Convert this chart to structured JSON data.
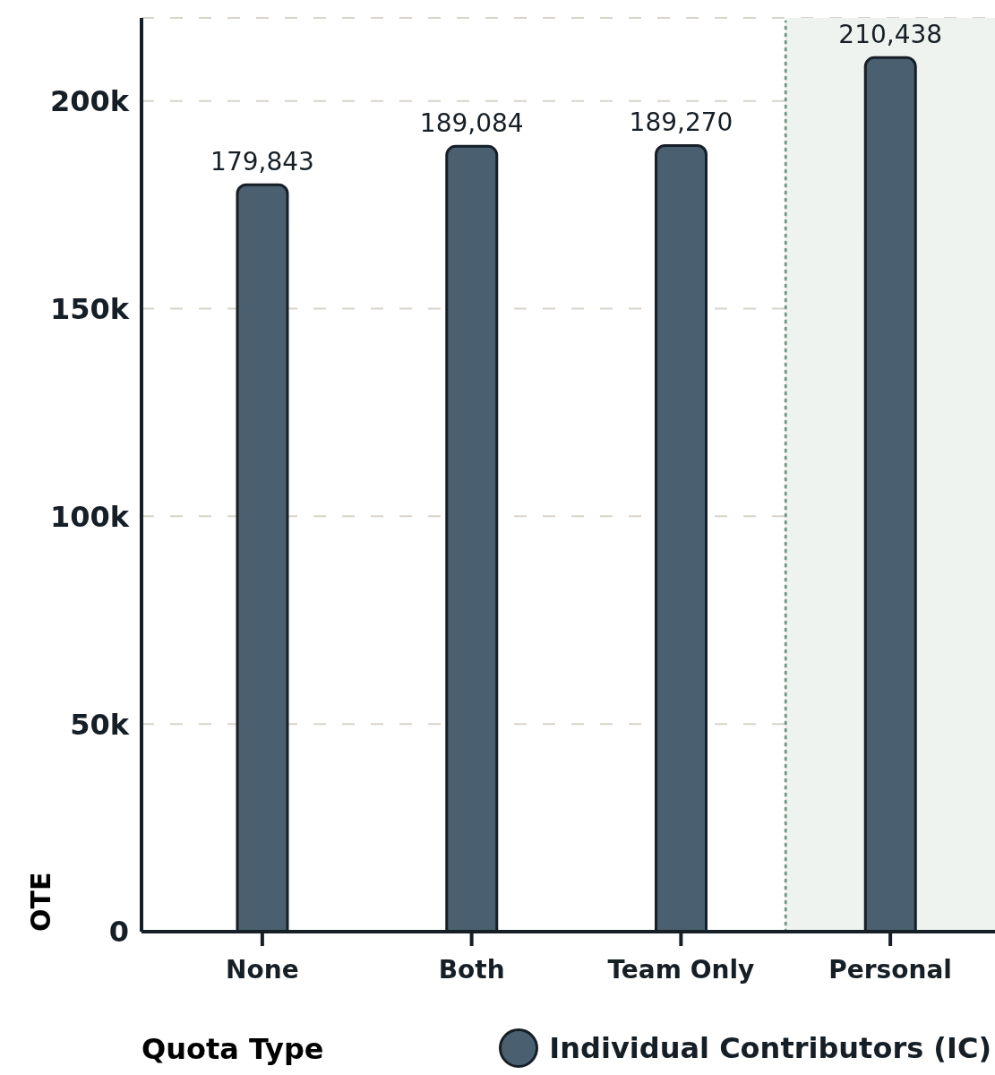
{
  "chart_data": {
    "type": "bar",
    "xlabel": "Quota Type",
    "ylabel": "OTE",
    "categories": [
      "None",
      "Both",
      "Team Only",
      "Personal"
    ],
    "series": [
      {
        "name": "Individual Contributors (IC)",
        "color": "#4a6070",
        "values": [
          179843,
          189084,
          189270,
          210438
        ],
        "value_labels": [
          "179,843",
          "189,084",
          "189,270",
          "210,438"
        ]
      }
    ],
    "ylim": [
      0,
      220000
    ],
    "yticks": [
      0,
      {
        "value": 50000,
        "label": "50k"
      },
      {
        "value": 100000,
        "label": "100k"
      },
      {
        "value": 150000,
        "label": "150k"
      },
      {
        "value": 200000,
        "label": "200k"
      }
    ],
    "grid": "y",
    "legend": "bottom",
    "bands": [
      {
        "axis": "x",
        "from": "Personal",
        "to": "Personal",
        "color": "#eff3ef"
      }
    ]
  }
}
